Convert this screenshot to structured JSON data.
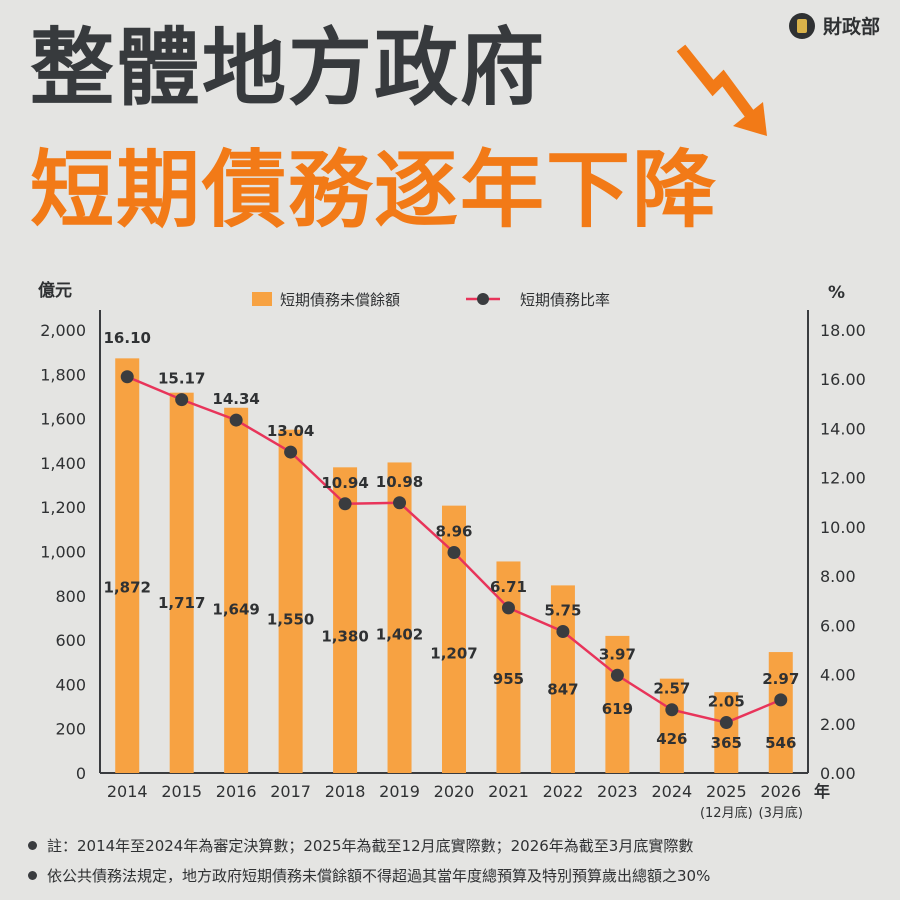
{
  "header": {
    "org_name": "財政部",
    "org_icon": "ministry-emblem-icon",
    "title_line1": "整體地方政府",
    "title_line2": "短期債務逐年下降",
    "trend_icon": "down-arrow-icon"
  },
  "colors": {
    "bar": "#f7a242",
    "line": "#e8345a",
    "marker": "#3a3c3f",
    "accent": "#f27a17",
    "text": "#2f3133"
  },
  "chart_data": {
    "type": "bar",
    "categories": [
      "2014",
      "2015",
      "2016",
      "2017",
      "2018",
      "2019",
      "2020",
      "2021",
      "2022",
      "2023",
      "2024",
      "2025",
      "2026"
    ],
    "category_sublabels": [
      "",
      "",
      "",
      "",
      "",
      "",
      "",
      "",
      "",
      "",
      "",
      "(12月底)",
      "(3月底)"
    ],
    "x_unit": "年",
    "y_left_unit": "億元",
    "y_right_unit": "%",
    "y_left_ticks": [
      "0",
      "200",
      "400",
      "600",
      "800",
      "1,000",
      "1,200",
      "1,400",
      "1,600",
      "1,800",
      "2,000"
    ],
    "y_right_ticks": [
      "0.00",
      "2.00",
      "4.00",
      "6.00",
      "8.00",
      "10.00",
      "12.00",
      "14.00",
      "16.00",
      "18.00"
    ],
    "ylim_left": [
      0,
      2000
    ],
    "ylim_right": [
      0,
      18
    ],
    "series": [
      {
        "name": "短期債務未償餘額",
        "kind": "bar",
        "axis": "left",
        "values": [
          1872,
          1717,
          1649,
          1550,
          1380,
          1402,
          1207,
          955,
          847,
          619,
          426,
          365,
          546
        ],
        "labels": [
          "1,872",
          "1,717",
          "1,649",
          "1,550",
          "1,380",
          "1,402",
          "1,207",
          "955",
          "847",
          "619",
          "426",
          "365",
          "546"
        ]
      },
      {
        "name": "短期債務比率",
        "kind": "line",
        "axis": "right",
        "values": [
          16.1,
          15.17,
          14.34,
          13.04,
          10.94,
          10.98,
          8.96,
          6.71,
          5.75,
          3.97,
          2.57,
          2.05,
          2.97
        ],
        "labels": [
          "16.10",
          "15.17",
          "14.34",
          "13.04",
          "10.94",
          "10.98",
          "8.96",
          "6.71",
          "5.75",
          "3.97",
          "2.57",
          "2.05",
          "2.97"
        ]
      }
    ],
    "legend_position": "top-center",
    "grid": false
  },
  "notes": [
    "註：2014年至2024年為審定決算數；2025年為截至12月底實際數；2026年為截至3月底實際數",
    "依公共債務法規定，地方政府短期債務未償餘額不得超過其當年度總預算及特別預算歲出總額之30%"
  ]
}
